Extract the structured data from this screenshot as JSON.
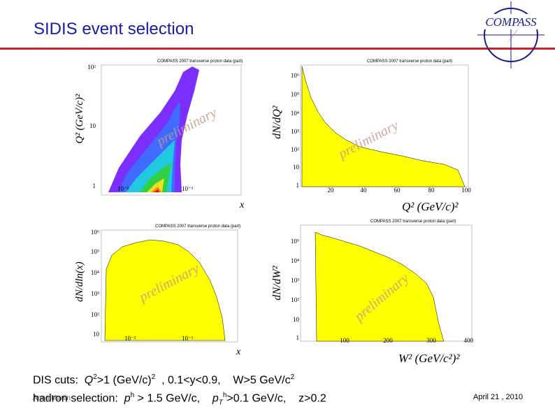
{
  "slide": {
    "title": "SIDIS event selection",
    "logo_text": "COMPASS",
    "author": "Anna Martin",
    "date": "April 21 , 2010",
    "cuts_line1": {
      "prefix": "DIS cuts:",
      "q2_sym": "Q",
      "q2_cut": ">1 (GeV/c)",
      "y_cut": ", 0.1<y<0.9,",
      "w_cut": "W>5 GeV/c"
    },
    "cuts_line2": {
      "prefix": "hadron selection:",
      "p_sym": "p",
      "p_cut": "> 1.5 GeV/c,",
      "pt_sym": "p",
      "pt_cut": ">0.1 GeV/c,",
      "z_cut": "z>0.2"
    },
    "colors": {
      "title": "#1a1aa8",
      "rule": "#cc2222",
      "fill": "#ffff00",
      "prelim": "#c89a8a"
    }
  },
  "panels": {
    "q2_vs_x": {
      "header": "COMPASS 2007 transverse proton data (part)",
      "ylabel": "Q²  (GeV/c)²",
      "xlabel": "x",
      "yticks": [
        "10²",
        "10",
        "1"
      ],
      "xticks": [
        "10⁻²",
        "10⁻¹"
      ],
      "watermark": "preliminary"
    },
    "dn_dq2": {
      "header": "COMPASS 2007 transverse proton data (part)",
      "ylabel": "dN/dQ²",
      "xlabel": "Q² (GeV/c)²",
      "yticks": [
        "10⁶",
        "10⁵",
        "10⁴",
        "10³",
        "10²",
        "10",
        "1"
      ],
      "xticks": [
        "20",
        "40",
        "60",
        "80",
        "100"
      ],
      "watermark": "preliminary"
    },
    "dn_dlnx": {
      "header": "COMPASS 2007 transverse proton data (part)",
      "ylabel": "dN/dln(x)",
      "xlabel": "x",
      "yticks": [
        "10⁶",
        "10⁵",
        "10⁴",
        "10³",
        "10²",
        "10"
      ],
      "xticks": [
        "10⁻²",
        "10⁻¹"
      ],
      "watermark": "preliminary"
    },
    "dn_dw2": {
      "header": "COMPASS 2007 transverse proton data (part)",
      "ylabel": "dN/dW²",
      "xlabel": "W² (GeV/c²)²",
      "yticks": [
        "10⁵",
        "10⁴",
        "10³",
        "10²",
        "10",
        "1"
      ],
      "xticks": [
        "100",
        "200",
        "300",
        "400"
      ],
      "watermark": "preliminary"
    }
  },
  "chart_data": [
    {
      "type": "heatmap",
      "xlabel": "x",
      "ylabel": "Q² (GeV/c)²",
      "x_scale": "log",
      "y_scale": "log",
      "xlim": [
        0.003,
        0.6
      ],
      "ylim": [
        1,
        100
      ]
    },
    {
      "type": "area",
      "xlabel": "Q² (GeV/c)²",
      "ylabel": "dN/dQ²",
      "y_scale": "log",
      "xlim": [
        1,
        100
      ],
      "ylim": [
        1,
        1000000
      ],
      "x": [
        1,
        3,
        6,
        10,
        15,
        20,
        30,
        40,
        50,
        60,
        70,
        80,
        85,
        90,
        95
      ],
      "y": [
        1000000,
        200000,
        60000,
        20000,
        8000,
        4000,
        1500,
        800,
        500,
        300,
        200,
        120,
        90,
        60,
        30
      ]
    },
    {
      "type": "area",
      "xlabel": "x",
      "ylabel": "dN/dln(x)",
      "x_scale": "log",
      "y_scale": "log",
      "xlim": [
        0.003,
        0.6
      ],
      "x": [
        0.003,
        0.005,
        0.01,
        0.03,
        0.06,
        0.1,
        0.2,
        0.3,
        0.4,
        0.5
      ],
      "y": [
        30000,
        120000,
        260000,
        340000,
        330000,
        260000,
        110000,
        30000,
        3000,
        50
      ]
    },
    {
      "type": "area",
      "xlabel": "W² (GeV/c²)²",
      "ylabel": "dN/dW²",
      "y_scale": "log",
      "xlim": [
        0,
        400
      ],
      "ylim": [
        1,
        1000000
      ],
      "x": [
        25,
        40,
        60,
        100,
        150,
        200,
        250,
        280,
        300,
        310,
        320
      ],
      "y": [
        400000,
        500000,
        400000,
        250000,
        150000,
        80000,
        40000,
        20000,
        5000,
        200,
        2
      ]
    }
  ]
}
